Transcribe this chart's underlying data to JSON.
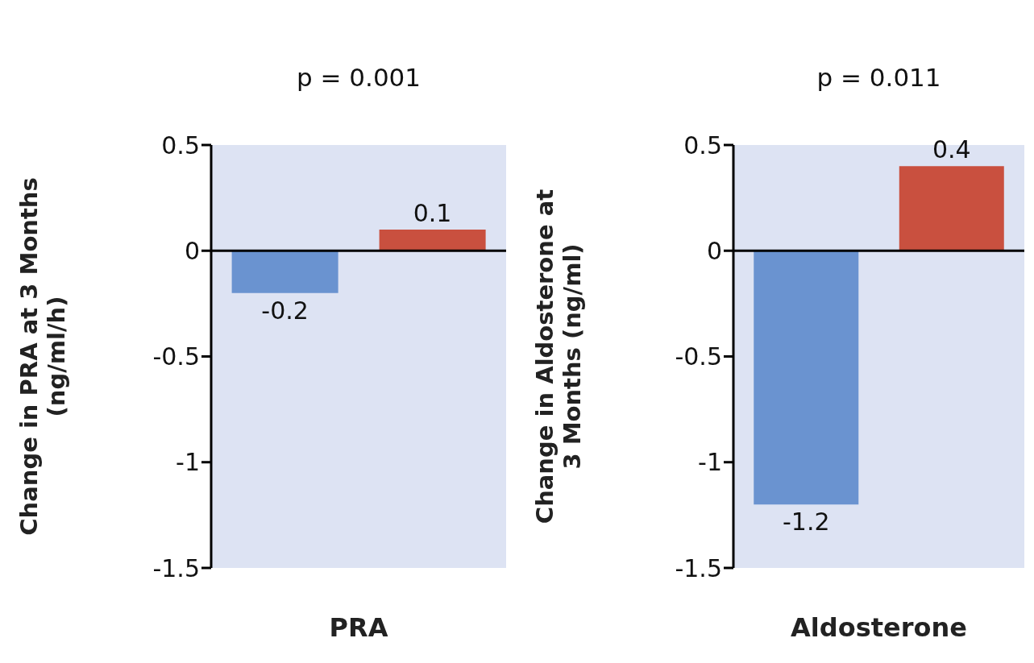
{
  "chart_data": [
    {
      "type": "bar",
      "title": "p = 0.001",
      "xlabel": "PRA",
      "ylabel": "Change in PRA at 3 Months (ng/ml/h)",
      "categories": [
        null,
        null
      ],
      "values": [
        -0.2,
        0.1
      ],
      "colors": [
        "#6a93d0",
        "#c9503f"
      ],
      "ylim": [
        -1.5,
        0.5
      ],
      "yticks": [
        -1.5,
        -1,
        -0.5,
        0,
        0.5
      ],
      "data_labels": true,
      "ref_lines": [
        {
          "axis": "y",
          "value": 0,
          "color": "#000000"
        }
      ]
    },
    {
      "type": "bar",
      "title": "p = 0.011",
      "xlabel": "Aldosterone",
      "ylabel": "Change in Aldosterone at 3 Months (ng/ml)",
      "categories": [
        null,
        null
      ],
      "values": [
        -1.2,
        0.4
      ],
      "colors": [
        "#6a93d0",
        "#c9503f"
      ],
      "ylim": [
        -1.5,
        0.5
      ],
      "yticks": [
        -1.5,
        -1,
        -0.5,
        0,
        0.5
      ],
      "data_labels": true,
      "ref_lines": [
        {
          "axis": "y",
          "value": 0,
          "color": "#000000"
        }
      ]
    }
  ]
}
